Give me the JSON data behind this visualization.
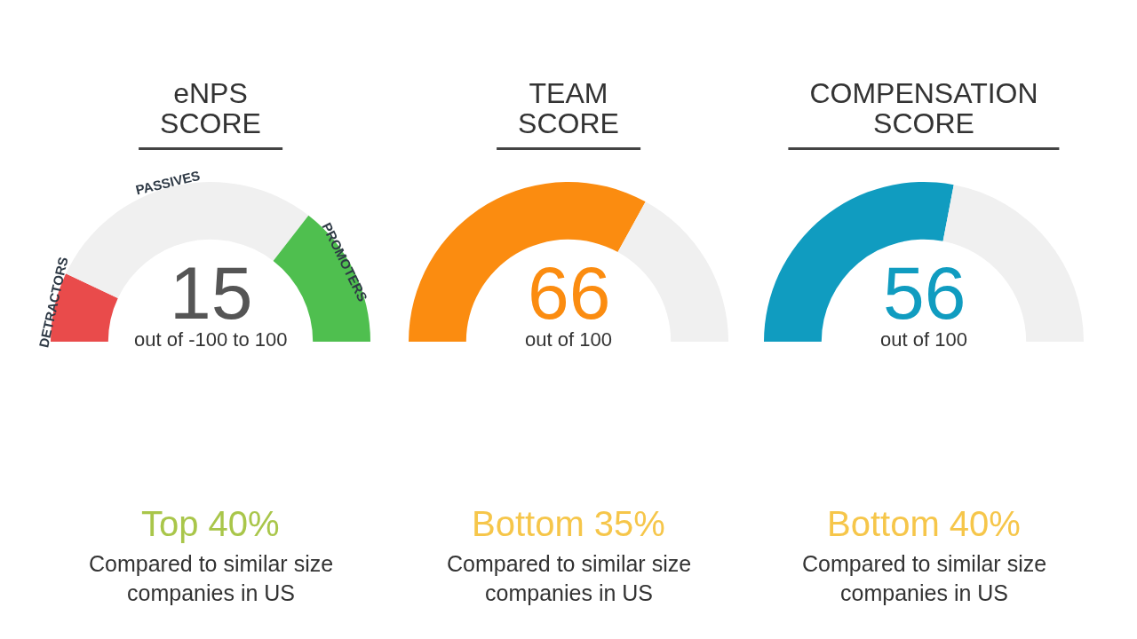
{
  "chart_data": [
    {
      "type": "donut",
      "title": "eNPS SCORE",
      "categories": [
        "DETRACTORS",
        "PASSIVES",
        "PROMOTERS"
      ],
      "values": [
        14,
        57,
        29
      ],
      "colors": [
        "#e94b4b",
        "#f0f0f0",
        "#4fbf4f"
      ],
      "annotations": [
        "15",
        "out of -100 to 100",
        "Top 40%",
        "Compared to similar size companies in US"
      ]
    },
    {
      "type": "donut",
      "title": "TEAM SCORE",
      "categories": [
        null,
        null
      ],
      "values": [
        66,
        34
      ],
      "colors": [
        "#fb8c10",
        "#f0f0f0"
      ],
      "annotations": [
        "66",
        "out of 100",
        "Bottom 35%",
        "Compared to similar size companies in US"
      ]
    },
    {
      "type": "donut",
      "title": "COMPENSATION SCORE",
      "categories": [
        null,
        null
      ],
      "values": [
        56,
        44
      ],
      "colors": [
        "#109cc0",
        "#f0f0f0"
      ],
      "annotations": [
        "56",
        "out of 100",
        "Bottom 40%",
        "Compared to similar size companies in US"
      ]
    }
  ]
}
